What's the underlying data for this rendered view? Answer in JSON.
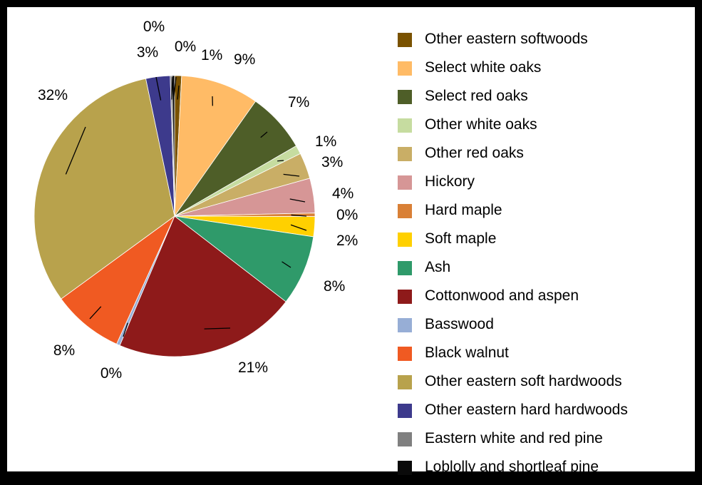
{
  "chart_data": {
    "type": "pie",
    "legend_position": "right",
    "slices": [
      {
        "name": "Other eastern softwoods",
        "pct_label": "1%",
        "value": 0.8,
        "color": "#7a5200"
      },
      {
        "name": "Select white oaks",
        "pct_label": "9%",
        "value": 9.0,
        "color": "#ffbb66"
      },
      {
        "name": "Select red oaks",
        "pct_label": "7%",
        "value": 6.9,
        "color": "#4e5e28"
      },
      {
        "name": "Other white oaks",
        "pct_label": "1%",
        "value": 1.0,
        "color": "#c6dca0"
      },
      {
        "name": "Other red oaks",
        "pct_label": "3%",
        "value": 3.0,
        "color": "#c9ae66"
      },
      {
        "name": "Hickory",
        "pct_label": "4%",
        "value": 4.0,
        "color": "#d69696"
      },
      {
        "name": "Hard maple",
        "pct_label": "0%",
        "value": 0.4,
        "color": "#d98036"
      },
      {
        "name": "Soft maple",
        "pct_label": "2%",
        "value": 2.3,
        "color": "#ffd000"
      },
      {
        "name": "Ash",
        "pct_label": "8%",
        "value": 8.1,
        "color": "#2f9a6a"
      },
      {
        "name": "Cottonwood and aspen",
        "pct_label": "21%",
        "value": 21.0,
        "color": "#8e1a1a"
      },
      {
        "name": "Basswood",
        "pct_label": "0%",
        "value": 0.4,
        "color": "#97aed6"
      },
      {
        "name": "Black walnut",
        "pct_label": "8%",
        "value": 8.2,
        "color": "#f05a22"
      },
      {
        "name": "Other eastern soft hardwoods",
        "pct_label": "32%",
        "value": 31.8,
        "color": "#b8a24c"
      },
      {
        "name": "Other eastern hard hardwoods",
        "pct_label": "3%",
        "value": 2.8,
        "color": "#3d3a8c"
      },
      {
        "name": "Eastern white and red pine",
        "pct_label": "0%",
        "value": 0.2,
        "color": "#808080"
      },
      {
        "name": "Loblolly and shortleaf pine",
        "pct_label": "0%",
        "value": 0.3,
        "color": "#0a0a0a"
      }
    ]
  }
}
